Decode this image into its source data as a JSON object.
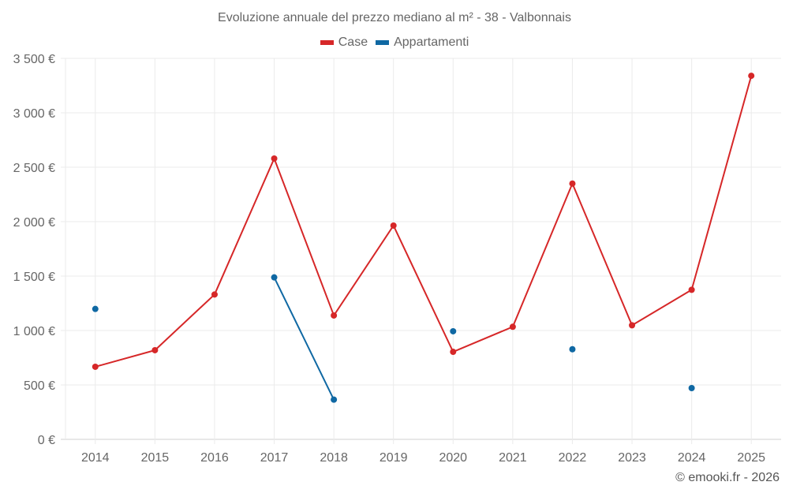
{
  "chart_data": {
    "type": "line",
    "title": "Evoluzione annuale del prezzo mediano al m² - 38 - Valbonnais",
    "xlabel": "",
    "ylabel": "",
    "categories": [
      "2014",
      "2015",
      "2016",
      "2017",
      "2018",
      "2019",
      "2020",
      "2021",
      "2022",
      "2023",
      "2024",
      "2025"
    ],
    "ylim": [
      0,
      3500
    ],
    "yticks": [
      0,
      500,
      1000,
      1500,
      2000,
      2500,
      3000,
      3500
    ],
    "ytick_labels": [
      "0 €",
      "500 €",
      "1 000 €",
      "1 500 €",
      "2 000 €",
      "2 500 €",
      "3 000 €",
      "3 500 €"
    ],
    "grid": true,
    "legend_position": "top",
    "series": [
      {
        "name": "Case",
        "color": "#d62728",
        "values": [
          667,
          819,
          1331,
          2580,
          1138,
          1964,
          804,
          1034,
          2350,
          1048,
          1374,
          3340
        ]
      },
      {
        "name": "Appartamenti",
        "color": "#0f68a3",
        "values": [
          1198,
          null,
          null,
          1488,
          365,
          null,
          993,
          null,
          828,
          null,
          471,
          null
        ]
      }
    ]
  },
  "title": "Evoluzione annuale del prezzo mediano al m² - 38 - Valbonnais",
  "legend": [
    {
      "label": "Case",
      "color": "#d62728"
    },
    {
      "label": "Appartamenti",
      "color": "#0f68a3"
    }
  ],
  "copyright": "© emooki.fr - 2026"
}
